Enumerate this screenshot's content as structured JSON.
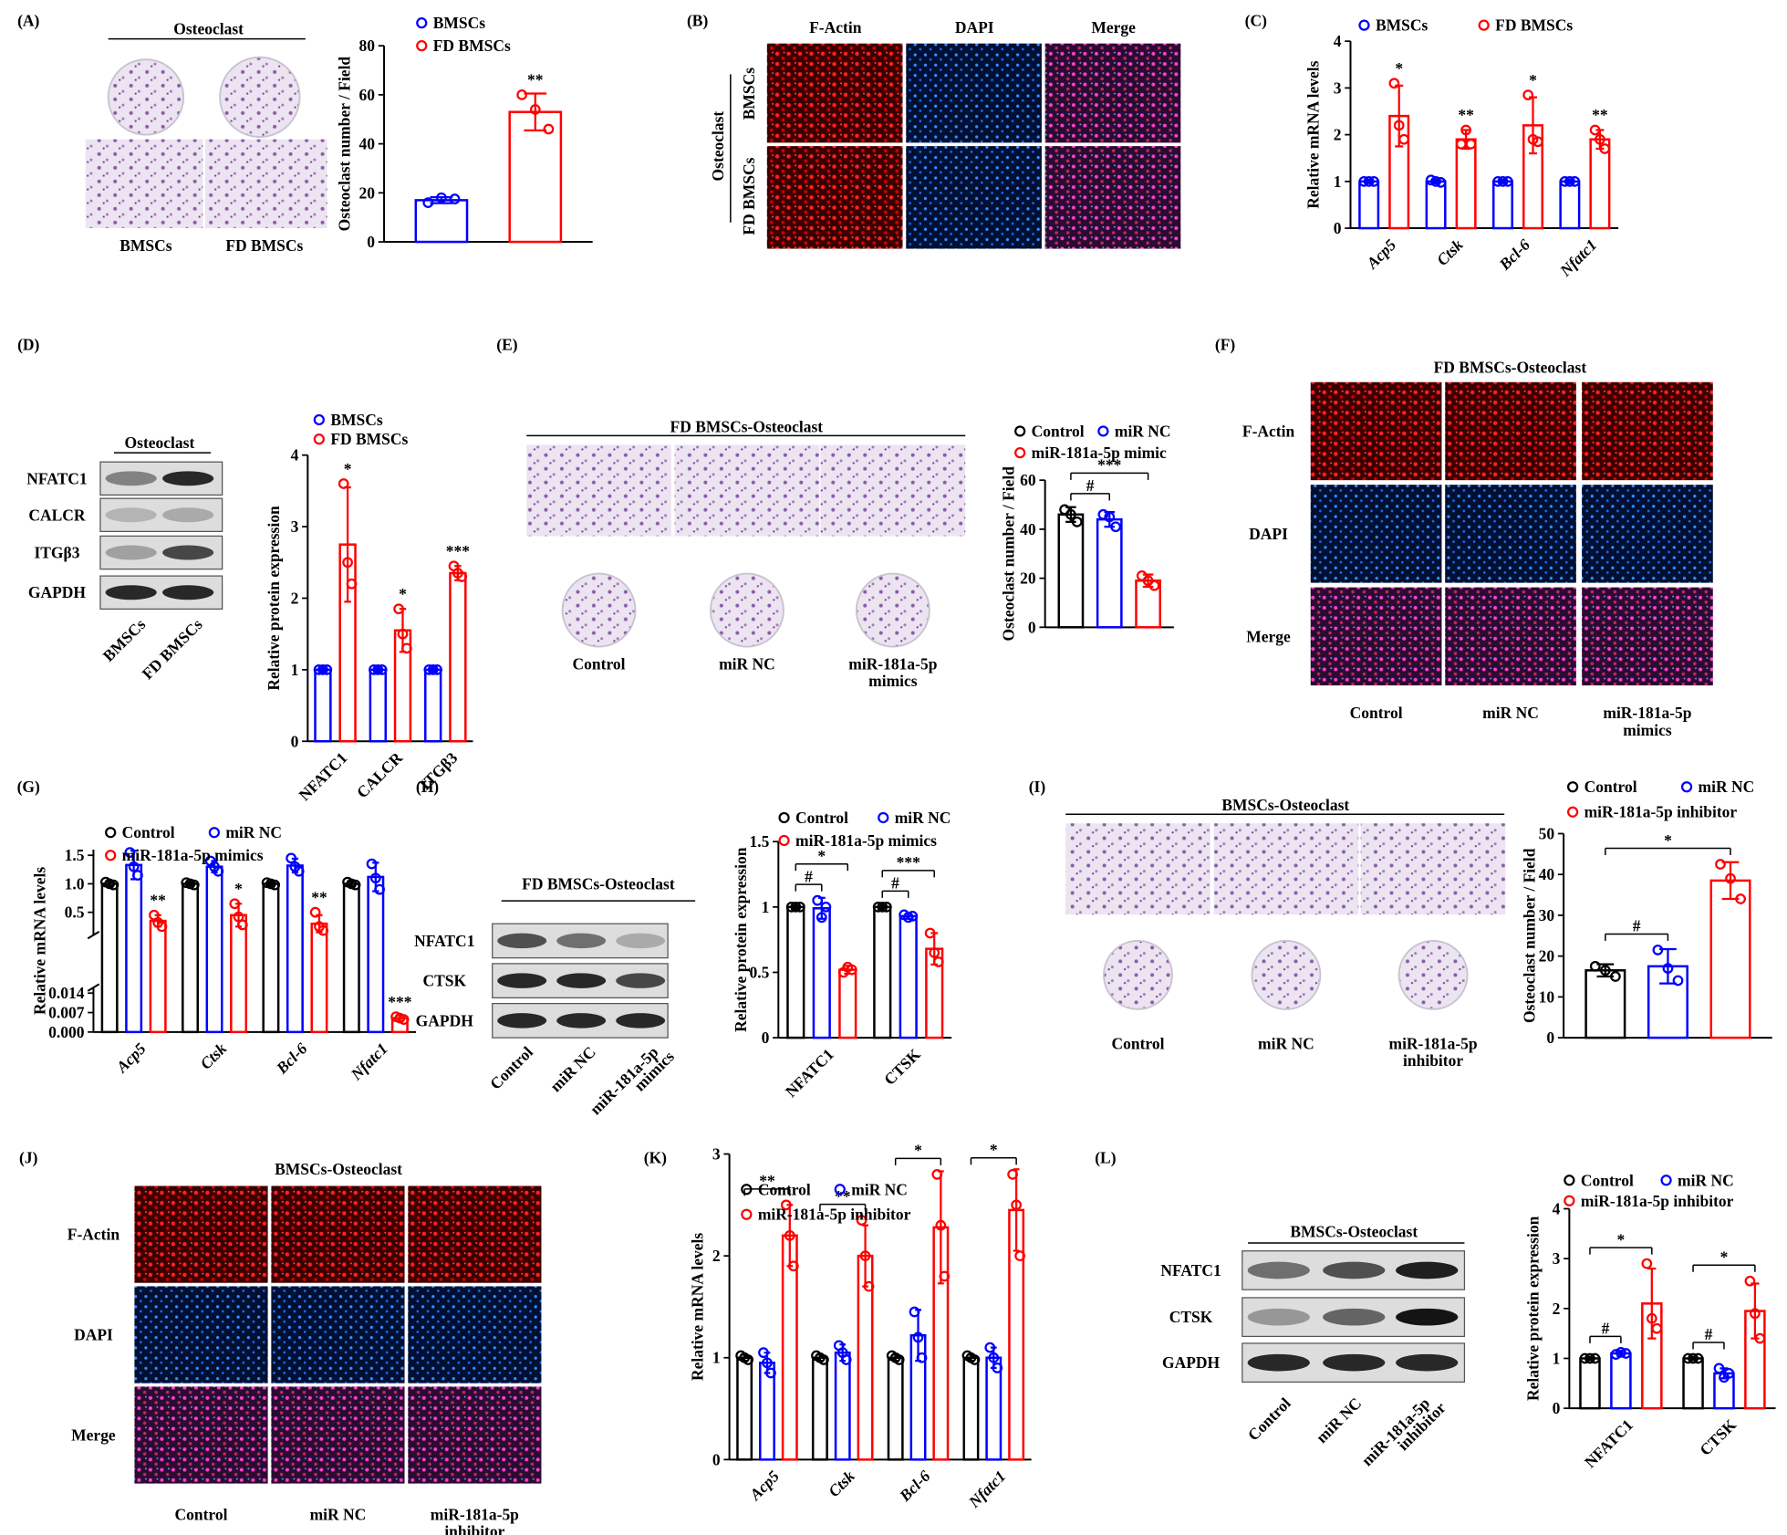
{
  "panels": {
    "A": {
      "label": "(A)",
      "header": "Osteoclast",
      "captions": [
        "BMSCs",
        "FD BMSCs"
      ]
    },
    "B": {
      "label": "(B)",
      "columns": [
        "F-Actin",
        "DAPI",
        "Merge"
      ],
      "rows": [
        "BMSCs",
        "FD BMSCs"
      ],
      "group": "Osteoclast"
    },
    "C": {
      "label": "(C)"
    },
    "D": {
      "label": "(D)",
      "header": "Osteoclast",
      "blots": [
        "NFATC1",
        "CALCR",
        "ITGβ3",
        "GAPDH"
      ],
      "lanes": [
        [
          "BMSCs"
        ],
        [
          "FD BMSCs"
        ]
      ]
    },
    "E": {
      "label": "(E)",
      "header": "FD BMSCs-Osteoclast",
      "captions": [
        [
          "Control"
        ],
        [
          "miR NC"
        ],
        [
          "miR-181a-5p",
          "mimics"
        ]
      ]
    },
    "F": {
      "label": "(F)",
      "header": "FD BMSCs-Osteoclast",
      "rows": [
        "F-Actin",
        "DAPI",
        "Merge"
      ],
      "columns": [
        [
          "Control"
        ],
        [
          "miR NC"
        ],
        [
          "miR-181a-5p",
          "mimics"
        ]
      ]
    },
    "G": {
      "label": "(G)"
    },
    "H": {
      "label": "(H)",
      "header": "FD BMSCs-Osteoclast",
      "blots": [
        "NFATC1",
        "CTSK",
        "GAPDH"
      ],
      "lanes": [
        [
          "Control"
        ],
        [
          "miR NC"
        ],
        [
          "miR-181a-5p",
          "mimics"
        ]
      ]
    },
    "I": {
      "label": "(I)",
      "header": "BMSCs-Osteoclast",
      "captions": [
        [
          "Control"
        ],
        [
          "miR NC"
        ],
        [
          "miR-181a-5p",
          "inhibitor"
        ]
      ]
    },
    "J": {
      "label": "(J)",
      "header": "BMSCs-Osteoclast",
      "rows": [
        "F-Actin",
        "DAPI",
        "Merge"
      ],
      "columns": [
        [
          "Control"
        ],
        [
          "miR NC"
        ],
        [
          "miR-181a-5p",
          "inhibitor"
        ]
      ]
    },
    "K": {
      "label": "(K)"
    },
    "L": {
      "label": "(L)",
      "header": "BMSCs-Osteoclast",
      "blots": [
        "NFATC1",
        "CTSK",
        "GAPDH"
      ],
      "lanes": [
        [
          "Control"
        ],
        [
          "miR NC"
        ],
        [
          "miR-181a-5p",
          "inhibitor"
        ]
      ]
    }
  },
  "chart_data": [
    {
      "type": "bar",
      "ylabel": "Osteoclast number / Field",
      "categories": [
        null
      ],
      "series": [
        {
          "name": "BMSCs",
          "color": "#0000ff",
          "values": [
            17
          ],
          "errors": [
            1.2
          ],
          "points": [
            [
              16,
              18,
              17.5
            ]
          ],
          "sig": [
            null
          ]
        },
        {
          "name": "FD BMSCs",
          "color": "#ff0000",
          "values": [
            53
          ],
          "errors": [
            7.5
          ],
          "points": [
            [
              60,
              54,
              46
            ]
          ],
          "sig": [
            "**"
          ]
        }
      ],
      "ylim": [
        0,
        80
      ],
      "yticks": [
        0,
        20,
        40,
        60,
        80
      ]
    },
    {
      "type": "bar",
      "ylabel": "Relative mRNA levels",
      "categories": [
        "Acp5",
        "Ctsk",
        "Bcl-6",
        "Nfatc1"
      ],
      "category_style": "italic",
      "series": [
        {
          "name": "BMSCs",
          "color": "#0000ff",
          "values": [
            1,
            1,
            1,
            1
          ],
          "errors": [
            0.03,
            0.04,
            0.03,
            0.03
          ],
          "points": [
            [
              1,
              1,
              1
            ],
            [
              1.03,
              1,
              0.98
            ],
            [
              1,
              1,
              1
            ],
            [
              1,
              1,
              1
            ]
          ],
          "sig": [
            null,
            null,
            null,
            null
          ]
        },
        {
          "name": "FD BMSCs",
          "color": "#ff0000",
          "values": [
            2.4,
            1.9,
            2.2,
            1.9
          ],
          "errors": [
            0.65,
            0.2,
            0.6,
            0.2
          ],
          "points": [
            [
              3.1,
              2.2,
              1.9
            ],
            [
              1.8,
              2.1,
              1.8
            ],
            [
              2.85,
              1.9,
              1.85
            ],
            [
              2.1,
              1.9,
              1.7
            ]
          ],
          "sig": [
            "*",
            "**",
            "*",
            "**"
          ]
        }
      ],
      "ylim": [
        0,
        4
      ],
      "yticks": [
        0,
        1,
        2,
        3,
        4
      ]
    },
    {
      "type": "bar",
      "ylabel": "Relative protein expression",
      "categories": [
        "NFATC1",
        "CALCR",
        "ITGβ3"
      ],
      "series": [
        {
          "name": "BMSCs",
          "color": "#0000ff",
          "values": [
            1,
            1,
            1
          ],
          "errors": [
            0.02,
            0.02,
            0.02
          ],
          "points": [
            [
              1,
              1,
              1
            ],
            [
              1,
              1,
              1
            ],
            [
              1,
              1,
              1
            ]
          ],
          "sig": [
            null,
            null,
            null
          ]
        },
        {
          "name": "FD BMSCs",
          "color": "#ff0000",
          "values": [
            2.75,
            1.55,
            2.35
          ],
          "errors": [
            0.8,
            0.3,
            0.1
          ],
          "points": [
            [
              3.6,
              2.5,
              2.2
            ],
            [
              1.85,
              1.5,
              1.3
            ],
            [
              2.45,
              2.35,
              2.3
            ]
          ],
          "sig": [
            "*",
            "*",
            "***"
          ]
        }
      ],
      "ylim": [
        0,
        4
      ],
      "yticks": [
        0,
        1,
        2,
        3,
        4
      ]
    },
    {
      "type": "bar",
      "ylabel": "Osteoclast number / Field",
      "categories": [
        null
      ],
      "brackets": true,
      "series": [
        {
          "name": "Control",
          "color": "#000000",
          "values": [
            46
          ],
          "errors": [
            3
          ],
          "points": [
            [
              48,
              46,
              43
            ]
          ],
          "sig": [
            null
          ]
        },
        {
          "name": "miR NC",
          "color": "#0000ff",
          "values": [
            44
          ],
          "errors": [
            3
          ],
          "points": [
            [
              46,
              45,
              41
            ]
          ],
          "sig": [
            "#"
          ]
        },
        {
          "name": "miR-181a-5p mimic",
          "color": "#ff0000",
          "values": [
            19
          ],
          "errors": [
            2.5
          ],
          "points": [
            [
              21,
              19,
              17
            ]
          ],
          "sig": [
            "***"
          ]
        }
      ],
      "ylim": [
        0,
        60
      ],
      "yticks": [
        0,
        20,
        40,
        60
      ]
    },
    {
      "type": "bar",
      "ylabel": "Relative mRNA levels",
      "categories": [
        "Acp5",
        "Ctsk",
        "Bcl-6",
        "Nfatc1"
      ],
      "category_style": "italic",
      "series": [
        {
          "name": "Control",
          "color": "#000000",
          "values": [
            1,
            1,
            1,
            1
          ],
          "errors": [
            0.04,
            0.03,
            0.03,
            0.04
          ],
          "points": [
            [
              1.03,
              1,
              0.98
            ],
            [
              1.02,
              1,
              0.98
            ],
            [
              1.02,
              1,
              0.98
            ],
            [
              1.03,
              1,
              0.98
            ]
          ],
          "sig": [
            null,
            null,
            null,
            null
          ]
        },
        {
          "name": "miR NC",
          "color": "#0000ff",
          "values": [
            1.33,
            1.3,
            1.32,
            1.12
          ],
          "errors": [
            0.25,
            0.1,
            0.12,
            0.25
          ],
          "points": [
            [
              1.55,
              1.3,
              1.15
            ],
            [
              1.4,
              1.3,
              1.22
            ],
            [
              1.45,
              1.3,
              1.22
            ],
            [
              1.35,
              1.1,
              0.9
            ]
          ],
          "sig": [
            null,
            null,
            null,
            null
          ]
        },
        {
          "name": "miR-181a-5p mimics",
          "color": "#ff0000",
          "values": [
            0.35,
            0.45,
            0.3,
            0.005
          ],
          "errors": [
            0.1,
            0.2,
            0.15,
            0.001
          ],
          "points": [
            [
              0.45,
              0.32,
              0.25
            ],
            [
              0.65,
              0.42,
              0.28
            ],
            [
              0.5,
              0.25,
              0.18
            ],
            [
              0.0055,
              0.005,
              0.0045
            ]
          ],
          "sig": [
            "**",
            "*",
            "**",
            "***"
          ]
        }
      ],
      "ylim": [
        0,
        1.6
      ],
      "ybreak": [
        0.016,
        0.1
      ],
      "yticks": [
        {
          "value": 0,
          "label": "0.000"
        },
        0.007,
        0.014,
        0.5,
        {
          "value": 1,
          "label": "1.0"
        },
        1.5
      ]
    },
    {
      "type": "bar",
      "ylabel": "Relative protein expression",
      "categories": [
        "NFATC1",
        "CTSK"
      ],
      "brackets": true,
      "series": [
        {
          "name": "Control",
          "color": "#000000",
          "values": [
            1,
            1
          ],
          "errors": [
            0.01,
            0.01
          ],
          "points": [
            [
              1,
              1,
              1
            ],
            [
              1,
              1,
              1
            ]
          ],
          "sig": [
            null,
            null
          ]
        },
        {
          "name": "miR NC",
          "color": "#0000ff",
          "values": [
            0.99,
            0.93
          ],
          "errors": [
            0.08,
            0.02
          ],
          "points": [
            [
              1.05,
              0.92,
              1.0
            ],
            [
              0.94,
              0.92,
              0.93
            ]
          ],
          "sig": [
            "#",
            "#"
          ]
        },
        {
          "name": "miR-181a-5p mimics",
          "color": "#ff0000",
          "values": [
            0.52,
            0.68
          ],
          "errors": [
            0.03,
            0.12
          ],
          "points": [
            [
              0.5,
              0.54,
              0.52
            ],
            [
              0.8,
              0.65,
              0.58
            ]
          ],
          "sig": [
            "*",
            "***"
          ]
        }
      ],
      "ylim": [
        0,
        1.5
      ],
      "yticks": [
        0,
        0.5,
        1,
        1.5
      ]
    },
    {
      "type": "bar",
      "ylabel": "Osteoclast number / Field",
      "categories": [
        null
      ],
      "brackets": true,
      "series": [
        {
          "name": "Control",
          "color": "#000000",
          "values": [
            16.5
          ],
          "errors": [
            1.5
          ],
          "points": [
            [
              17.5,
              16.5,
              15
            ]
          ],
          "sig": [
            null
          ]
        },
        {
          "name": "miR NC",
          "color": "#0000ff",
          "values": [
            17.5
          ],
          "errors": [
            4.2
          ],
          "points": [
            [
              21.5,
              17,
              14
            ]
          ],
          "sig": [
            "#"
          ]
        },
        {
          "name": "miR-181a-5p inhibitor",
          "color": "#ff0000",
          "values": [
            38.5
          ],
          "errors": [
            4.5
          ],
          "points": [
            [
              42.5,
              39,
              34
            ]
          ],
          "sig": [
            "*"
          ]
        }
      ],
      "ylim": [
        0,
        50
      ],
      "yticks": [
        0,
        10,
        20,
        30,
        40,
        50
      ]
    },
    {
      "type": "bar",
      "ylabel": "Relative mRNA levels",
      "categories": [
        "Acp5",
        "Ctsk",
        "Bcl-6",
        "Nfatc1"
      ],
      "category_style": "italic",
      "brackets": true,
      "series": [
        {
          "name": "Control",
          "color": "#000000",
          "values": [
            1,
            1,
            1,
            1
          ],
          "errors": [
            0.03,
            0.03,
            0.03,
            0.03
          ],
          "points": [
            [
              1.02,
              1,
              0.98
            ],
            [
              1.02,
              1,
              0.98
            ],
            [
              1.02,
              1,
              0.98
            ],
            [
              1.02,
              1,
              0.98
            ]
          ],
          "sig": [
            null,
            null,
            null,
            null
          ]
        },
        {
          "name": "miR NC",
          "color": "#0000ff",
          "values": [
            0.95,
            1.05,
            1.22,
            1.0
          ],
          "errors": [
            0.1,
            0.08,
            0.25,
            0.1
          ],
          "points": [
            [
              1.05,
              0.95,
              0.85
            ],
            [
              1.12,
              1.05,
              0.98
            ],
            [
              1.45,
              1.2,
              1.0
            ],
            [
              1.1,
              1.0,
              0.9
            ]
          ],
          "sig": [
            null,
            null,
            null,
            null
          ]
        },
        {
          "name": "miR-181a-5p inhibitor",
          "color": "#ff0000",
          "values": [
            2.2,
            2.0,
            2.28,
            2.45
          ],
          "errors": [
            0.3,
            0.3,
            0.55,
            0.4
          ],
          "points": [
            [
              2.5,
              2.2,
              1.9
            ],
            [
              2.35,
              2.0,
              1.7
            ],
            [
              2.8,
              2.3,
              1.8
            ],
            [
              2.8,
              2.5,
              2.0
            ]
          ],
          "sig": [
            "**",
            "**",
            "*",
            "*"
          ]
        }
      ],
      "ylim": [
        0,
        3
      ],
      "yticks": [
        0,
        1,
        2,
        3
      ]
    },
    {
      "type": "bar",
      "ylabel": "Relative protein expression",
      "categories": [
        "NFATC1",
        "CTSK"
      ],
      "brackets": true,
      "series": [
        {
          "name": "Control",
          "color": "#000000",
          "values": [
            1,
            1
          ],
          "errors": [
            0.02,
            0.02
          ],
          "points": [
            [
              1,
              1,
              1
            ],
            [
              1,
              1,
              1
            ]
          ],
          "sig": [
            null,
            null
          ]
        },
        {
          "name": "miR NC",
          "color": "#0000ff",
          "values": [
            1.1,
            0.7
          ],
          "errors": [
            0.05,
            0.1
          ],
          "points": [
            [
              1.08,
              1.12,
              1.1
            ],
            [
              0.8,
              0.62,
              0.7
            ]
          ],
          "sig": [
            "#",
            "#"
          ]
        },
        {
          "name": "miR-181a-5p inhibitor",
          "color": "#ff0000",
          "values": [
            2.1,
            1.95
          ],
          "errors": [
            0.7,
            0.55
          ],
          "points": [
            [
              2.9,
              1.8,
              1.6
            ],
            [
              2.55,
              1.9,
              1.4
            ]
          ],
          "sig": [
            "*",
            "*"
          ]
        }
      ],
      "ylim": [
        0,
        4
      ],
      "yticks": [
        0,
        1,
        2,
        3,
        4
      ]
    }
  ]
}
